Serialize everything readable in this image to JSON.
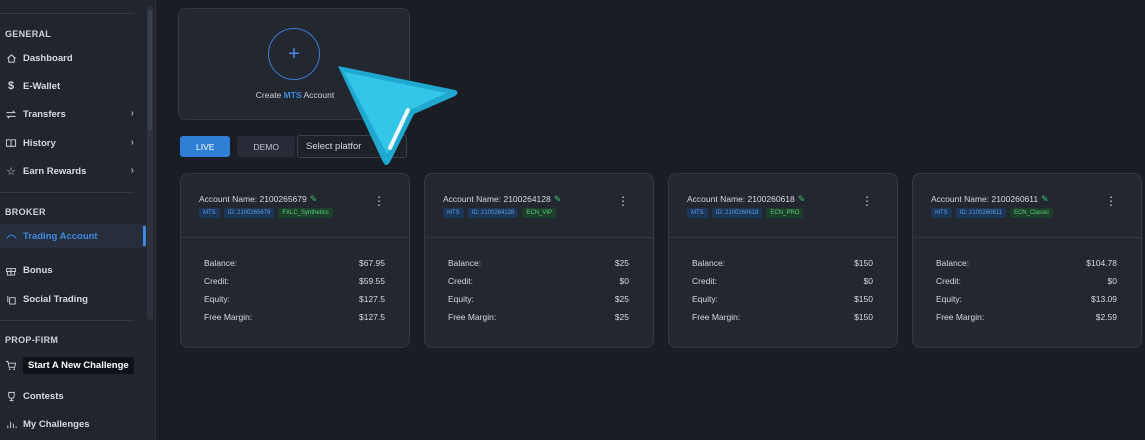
{
  "sidebar": {
    "sections": {
      "general": "GENERAL",
      "broker": "BROKER",
      "prop_firm": "PROP-FIRM"
    },
    "items": {
      "dashboard": "Dashboard",
      "ewallet": "E-Wallet",
      "transfers": "Transfers",
      "history": "History",
      "earn_rewards": "Earn Rewards",
      "trading_account": "Trading Account",
      "bonus": "Bonus",
      "social_trading": "Social Trading",
      "start_challenge": "Start A New Challenge",
      "contests": "Contests",
      "my_challenges": "My Challenges"
    }
  },
  "create": {
    "prefix": "Create",
    "platform": "MTS",
    "suffix": "Account"
  },
  "tabs": {
    "live": "LIVE",
    "demo": "DEMO"
  },
  "platform_select": {
    "placeholder": "Select platfor"
  },
  "accounts": [
    {
      "name": "Account Name: 2100265679",
      "badge_platform": "MTS",
      "badge_id": "ID: 2100265679",
      "badge_group": "FXLC_Synthetics",
      "labels": {
        "balance": "Balance:",
        "credit": "Credit:",
        "equity": "Equity:",
        "free_margin": "Free Margin:"
      },
      "balance": "$67.95",
      "credit": "$59.55",
      "equity": "$127.5",
      "free_margin": "$127.5"
    },
    {
      "name": "Account Name: 2100264128",
      "badge_platform": "MTS",
      "badge_id": "ID: 2100264128",
      "badge_group": "ECN_VIP",
      "labels": {
        "balance": "Balance:",
        "credit": "Credit:",
        "equity": "Equity:",
        "free_margin": "Free Margin:"
      },
      "balance": "$25",
      "credit": "$0",
      "equity": "$25",
      "free_margin": "$25"
    },
    {
      "name": "Account Name: 2100260618",
      "badge_platform": "MTS",
      "badge_id": "ID: 2100260618",
      "badge_group": "ECN_PRO",
      "labels": {
        "balance": "Balance:",
        "credit": "Credit:",
        "equity": "Equity:",
        "free_margin": "Free Margin:"
      },
      "balance": "$150",
      "credit": "$0",
      "equity": "$150",
      "free_margin": "$150"
    },
    {
      "name": "Account Name: 2100260611",
      "badge_platform": "MTS",
      "badge_id": "ID: 2100260611",
      "badge_group": "ECN_Classic",
      "labels": {
        "balance": "Balance:",
        "credit": "Credit:",
        "equity": "Equity:",
        "free_margin": "Free Margin:"
      },
      "balance": "$104.78",
      "credit": "$0",
      "equity": "$13.09",
      "free_margin": "$2.59"
    }
  ],
  "colors": {
    "accent": "#2f7fd6",
    "background": "#1a1d24",
    "card": "#23272f",
    "success": "#3fbf6a",
    "cursor": "#2bc3e3"
  }
}
